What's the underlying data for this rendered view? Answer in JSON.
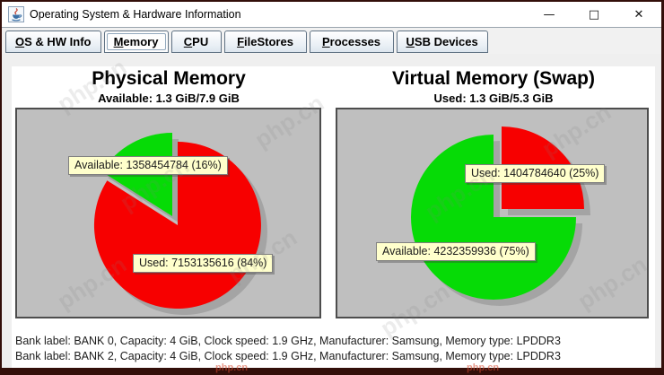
{
  "window": {
    "title": "Operating System & Hardware Information",
    "app_icon": "java-coffee-cup-icon",
    "controls": {
      "minimize": "—",
      "maximize": "□",
      "close": "✕"
    }
  },
  "tabs": [
    {
      "label": "OS & HW Info",
      "selected": false
    },
    {
      "label": "Memory",
      "selected": true
    },
    {
      "label": "CPU",
      "selected": false
    },
    {
      "label": "FileStores",
      "selected": false
    },
    {
      "label": "Processes",
      "selected": false
    },
    {
      "label": "USB Devices",
      "selected": false
    }
  ],
  "chart_data": [
    {
      "type": "pie",
      "title": "Physical Memory",
      "subtitle": "Available: 1.3 GiB/7.9 GiB",
      "plot_bg": "#bfbfbf",
      "slices": [
        {
          "name": "Used",
          "value": 7153135616,
          "pct": 84,
          "color": "#f70000",
          "label": "Used: 7153135616 (84%)",
          "exploded": false
        },
        {
          "name": "Available",
          "value": 1358454784,
          "pct": 16,
          "color": "#06db06",
          "label": "Available: 1358454784 (16%)",
          "exploded": true
        }
      ]
    },
    {
      "type": "pie",
      "title": "Virtual Memory (Swap)",
      "subtitle": "Used: 1.3 GiB/5.3 GiB",
      "plot_bg": "#bfbfbf",
      "slices": [
        {
          "name": "Used",
          "value": 1404784640,
          "pct": 25,
          "color": "#f70000",
          "label": "Used: 1404784640 (25%)",
          "exploded": true
        },
        {
          "name": "Available",
          "value": 4232359936,
          "pct": 75,
          "color": "#06db06",
          "label": "Available: 4232359936 (75%)",
          "exploded": false
        }
      ]
    }
  ],
  "memory_banks": [
    "Bank label: BANK 0, Capacity: 4 GiB, Clock speed: 1.9 GHz, Manufacturer: Samsung, Memory type: LPDDR3",
    "Bank label: BANK 2, Capacity: 4 GiB, Clock speed: 1.9 GHz, Manufacturer: Samsung, Memory type: LPDDR3"
  ],
  "label_style": {
    "bg": "#ffffcc",
    "border": "#808080"
  },
  "watermark": "php.cn"
}
